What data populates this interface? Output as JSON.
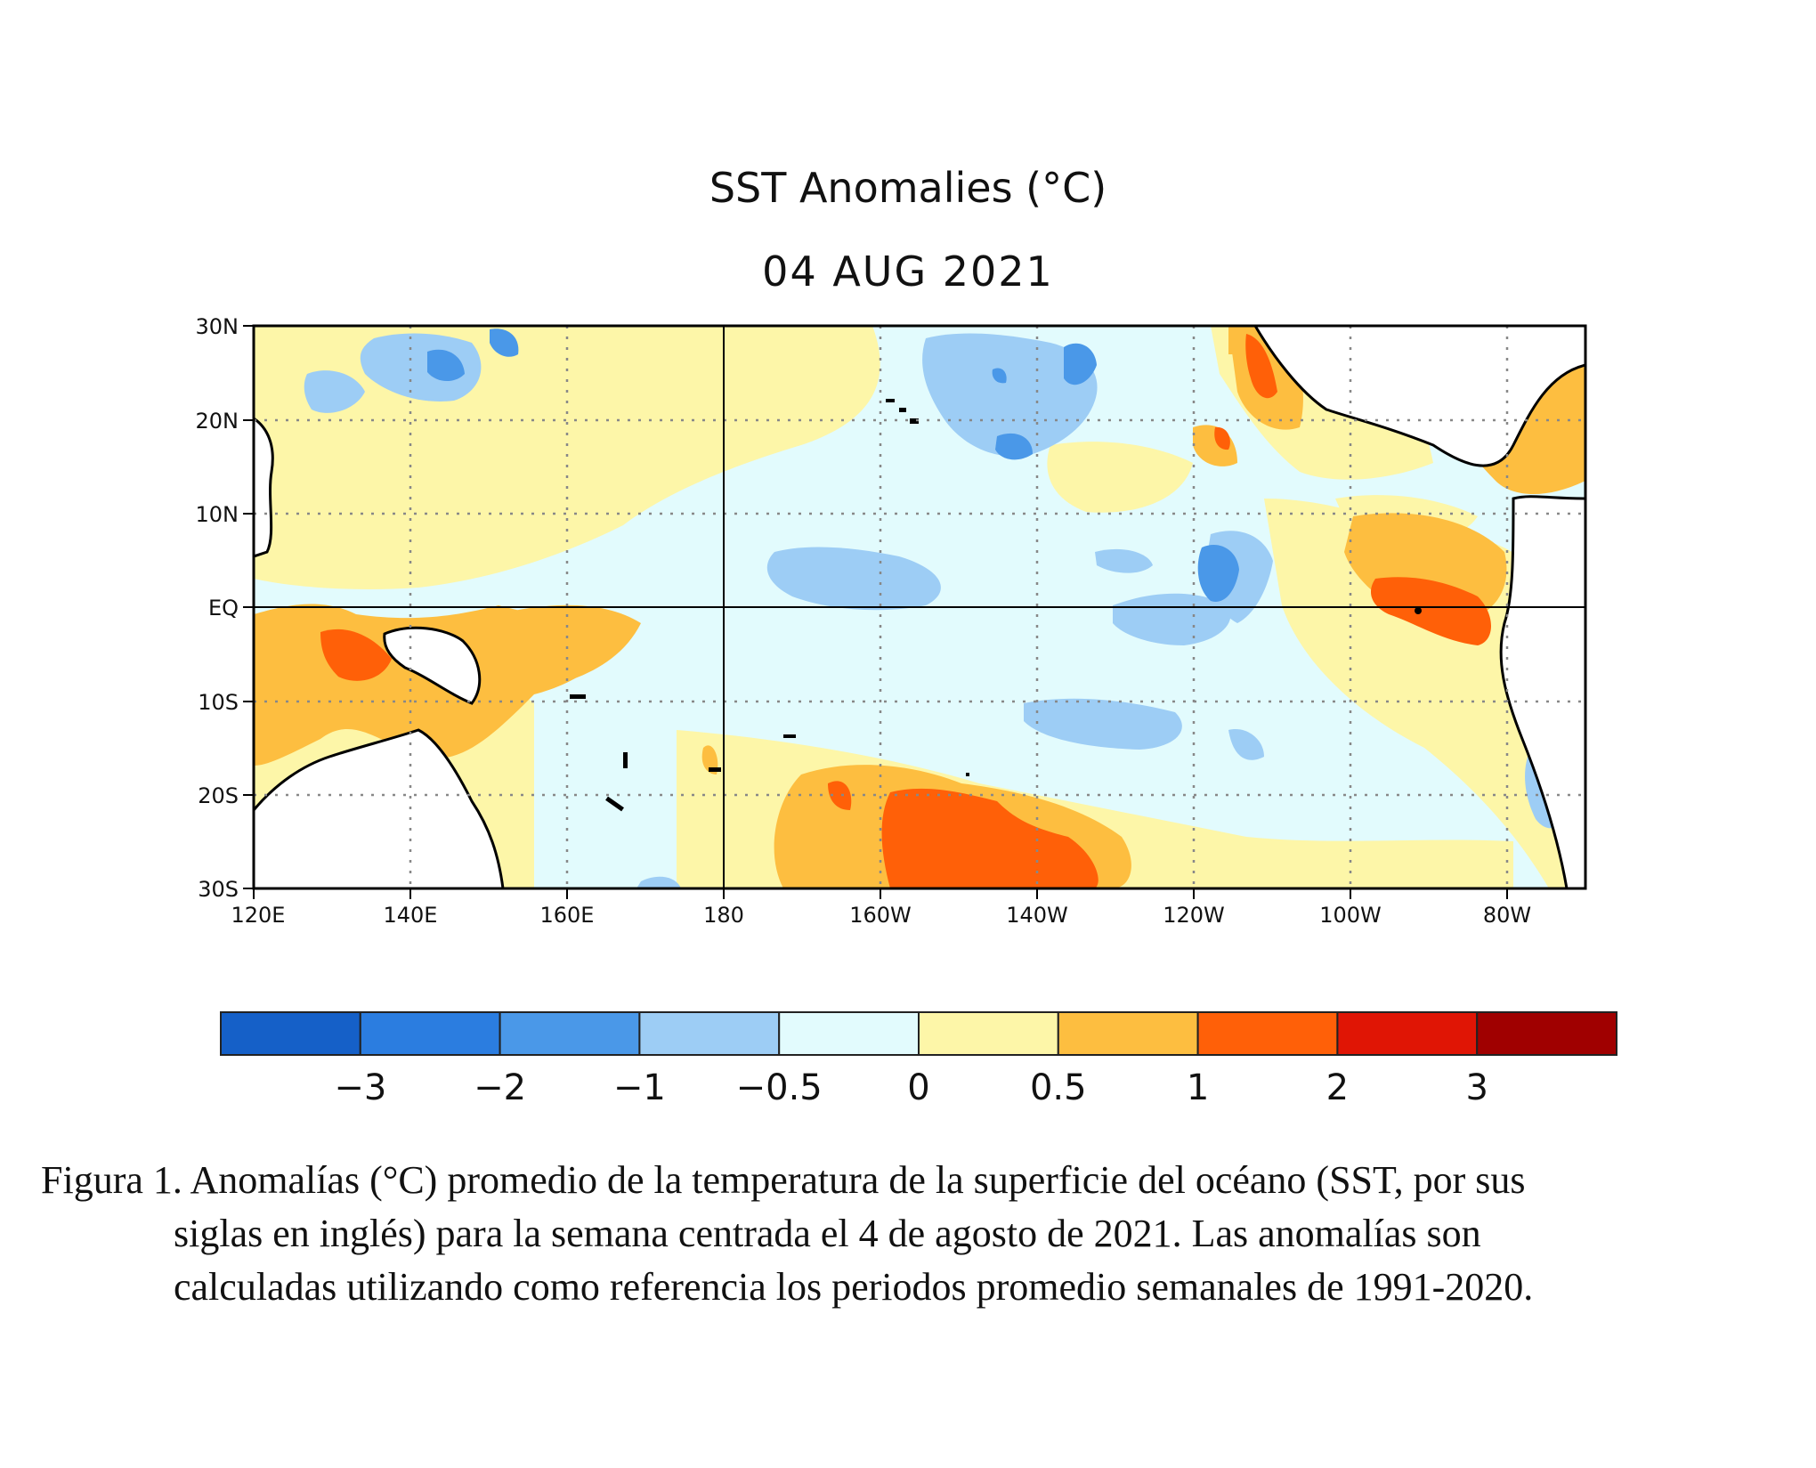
{
  "figure": {
    "title": "SST Anomalies (°C)",
    "date": "04 AUG 2021",
    "caption_lines": [
      "Figura 1. Anomalías (°C) promedio de la temperatura de la superficie del océano (SST, por sus",
      "siglas en inglés) para la semana centrada el 4 de agosto de 2021. Las anomalías son",
      "calculadas utilizando como referencia los periodos promedio semanales de 1991-2020."
    ]
  },
  "map": {
    "region": "Tropical Pacific Ocean",
    "lon_range": [
      120,
      290
    ],
    "lat_range": [
      -30,
      30
    ],
    "lat_ticks": [
      "30N",
      "20N",
      "10N",
      "EQ",
      "10S",
      "20S",
      "30S"
    ],
    "lon_ticks": [
      "120E",
      "140E",
      "160E",
      "180",
      "160W",
      "140W",
      "120W",
      "100W",
      "80W"
    ],
    "grid": "dotted",
    "reference_lines": [
      "Equator",
      "180"
    ],
    "land_color": "#ffffff",
    "coastline_color": "#000000",
    "anomaly_features": [
      {
        "name": "warm-pool-near-new-guinea",
        "category": "1 to 2"
      },
      {
        "name": "warm-anomaly-south-central-pacific",
        "category": "1 to 2"
      },
      {
        "name": "warm-anomaly-near-ecuador-galapagos",
        "category": "1 to 2"
      },
      {
        "name": "warm-anomaly-baja-california",
        "category": "1 to 2"
      },
      {
        "name": "cool-anomaly-central-equatorial-pacific",
        "category": "-1 to -0.5"
      },
      {
        "name": "cool-anomaly-120w-equator",
        "category": "-2 to -1"
      },
      {
        "name": "cool-anomaly-north-pacific-150w",
        "category": "-1 to -0.5"
      },
      {
        "name": "cool-anomaly-north-pacific-140e",
        "category": "-1 to -0.5"
      }
    ]
  },
  "colorbar": {
    "colors": [
      "#1560c8",
      "#2b7de0",
      "#4a98e8",
      "#9dcdf5",
      "#e2fbfd",
      "#fdf6a8",
      "#fdbe40",
      "#ff6008",
      "#e01505",
      "#a00000"
    ],
    "labels": [
      "−3",
      "−2",
      "−1",
      "−0.5",
      "0",
      "0.5",
      "1",
      "2",
      "3"
    ]
  }
}
